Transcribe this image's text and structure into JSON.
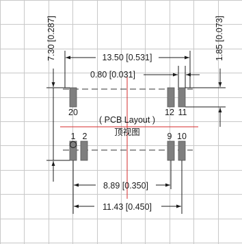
{
  "drawing": {
    "caption_line1": "( PCB Layout )",
    "caption_line2": "顶视图",
    "dimensions": {
      "total_width": "13.50 [0.531]",
      "pad_width": "0.80 [0.031]",
      "total_height": "7.30 [0.287]",
      "pad_height": "1.85 [0.073]",
      "row_span_inner": "8.89 [0.350]",
      "row_span_outer": "11.43 [0.450]"
    },
    "pin_labels": {
      "p20": "20",
      "p12": "12",
      "p11": "11",
      "p1": "1",
      "p2": "2",
      "p9": "9",
      "p10": "10"
    },
    "colors": {
      "pad_fill": "#7f7f7f",
      "grid": "#c8c8c8",
      "center_line": "#d62a2a",
      "ink": "#1a1a1a"
    }
  }
}
